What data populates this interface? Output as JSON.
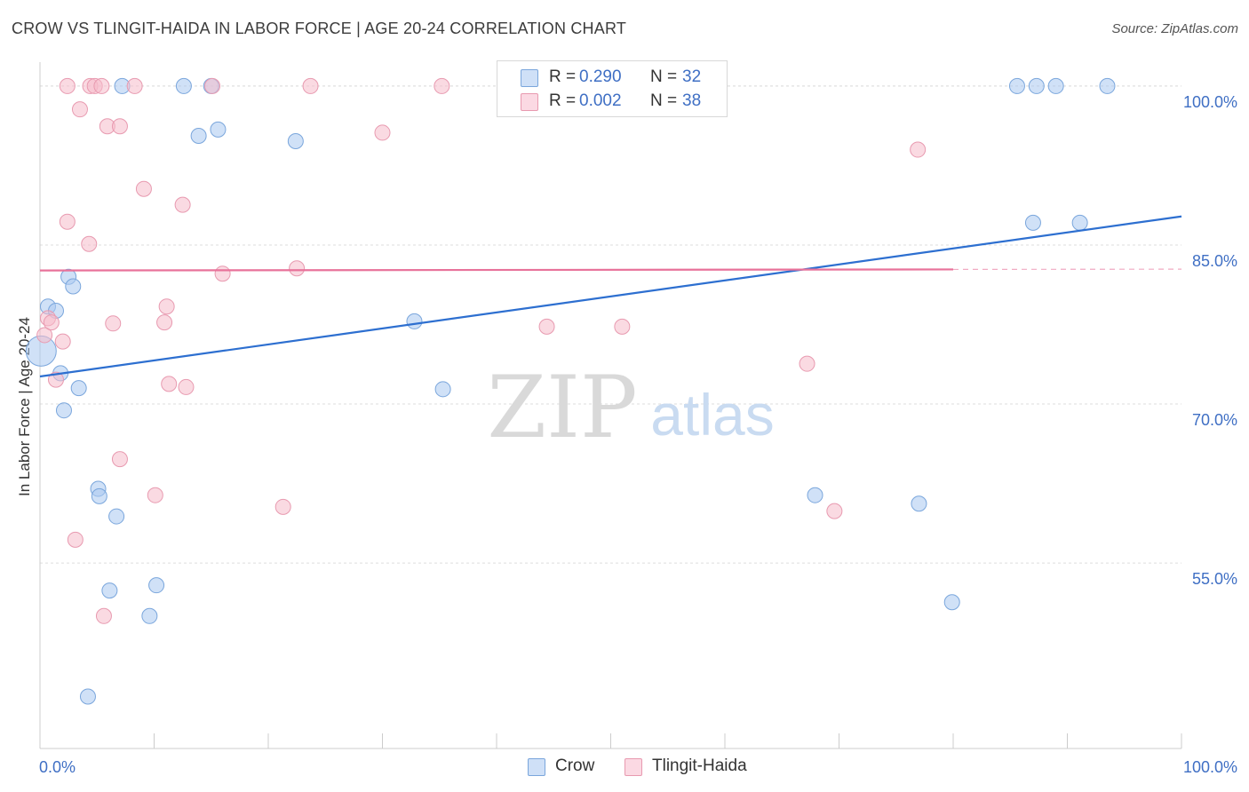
{
  "header": {
    "title": "CROW VS TLINGIT-HAIDA IN LABOR FORCE | AGE 20-24 CORRELATION CHART",
    "source": "Source: ZipAtlas.com"
  },
  "watermark": {
    "zip": "ZIP",
    "atlas": "atlas"
  },
  "legend": {
    "rows": [
      {
        "r_label": "R =",
        "r_value": "0.290",
        "n_label": "N =",
        "n_value": "32",
        "color": "#a9c8f0"
      },
      {
        "r_label": "R =",
        "r_value": "0.002",
        "n_label": "N =",
        "n_value": "38",
        "color": "#f6bccb"
      }
    ]
  },
  "chart_data": {
    "type": "scatter",
    "title": "CROW VS TLINGIT-HAIDA IN LABOR FORCE | AGE 20-24 CORRELATION CHART",
    "xlabel": "",
    "ylabel": "In Labor Force | Age 20-24",
    "xlim": [
      0,
      100
    ],
    "ylim": [
      37.5,
      101.5
    ],
    "x_tick_labels": [
      "0.0%",
      "100.0%"
    ],
    "y_ticks": [
      {
        "value": 55,
        "label": "55.0%"
      },
      {
        "value": 70,
        "label": "70.0%"
      },
      {
        "value": 85,
        "label": "85.0%"
      },
      {
        "value": 100,
        "label": "100.0%"
      }
    ],
    "grid": true,
    "legend_position": "bottom-center",
    "series": [
      {
        "name": "Crow",
        "color": "#a9c8f0",
        "edge": "#7aa6dc",
        "line_color": "#2d6fd0",
        "trend": {
          "x0": 0,
          "y0": 72.6,
          "x1": 100,
          "y1": 87.7
        },
        "points": [
          {
            "x": 0.1,
            "y": 75.0,
            "big": true
          },
          {
            "x": 0.7,
            "y": 79.2
          },
          {
            "x": 1.4,
            "y": 78.8
          },
          {
            "x": 1.8,
            "y": 72.9
          },
          {
            "x": 2.1,
            "y": 69.4
          },
          {
            "x": 2.5,
            "y": 82.0
          },
          {
            "x": 2.9,
            "y": 81.1
          },
          {
            "x": 3.4,
            "y": 71.5
          },
          {
            "x": 5.1,
            "y": 62.0
          },
          {
            "x": 5.2,
            "y": 61.3
          },
          {
            "x": 6.1,
            "y": 52.4
          },
          {
            "x": 6.7,
            "y": 59.4
          },
          {
            "x": 7.2,
            "y": 100.0
          },
          {
            "x": 9.6,
            "y": 50.0
          },
          {
            "x": 10.2,
            "y": 52.9
          },
          {
            "x": 12.6,
            "y": 100.0
          },
          {
            "x": 13.9,
            "y": 95.3
          },
          {
            "x": 15.0,
            "y": 100.0
          },
          {
            "x": 15.6,
            "y": 95.9
          },
          {
            "x": 22.4,
            "y": 94.8
          },
          {
            "x": 32.8,
            "y": 77.8
          },
          {
            "x": 35.3,
            "y": 71.4
          },
          {
            "x": 67.9,
            "y": 61.4
          },
          {
            "x": 77.0,
            "y": 60.6
          },
          {
            "x": 79.9,
            "y": 51.3
          },
          {
            "x": 85.6,
            "y": 100.0
          },
          {
            "x": 87.0,
            "y": 87.1
          },
          {
            "x": 87.3,
            "y": 100.0
          },
          {
            "x": 89.0,
            "y": 100.0
          },
          {
            "x": 91.1,
            "y": 87.1
          },
          {
            "x": 93.5,
            "y": 100.0
          },
          {
            "x": 4.2,
            "y": 42.4
          }
        ]
      },
      {
        "name": "Tlingit-Haida",
        "color": "#f6bccb",
        "edge": "#e89ab0",
        "line_color": "#e8729a",
        "trend": {
          "x0": 0,
          "y0": 82.6,
          "x1": 80,
          "y1": 82.7,
          "dashed_to": 100
        },
        "points": [
          {
            "x": 0.4,
            "y": 76.5
          },
          {
            "x": 0.7,
            "y": 78.1
          },
          {
            "x": 1.0,
            "y": 77.7
          },
          {
            "x": 1.4,
            "y": 72.3
          },
          {
            "x": 2.0,
            "y": 75.9
          },
          {
            "x": 2.4,
            "y": 87.2
          },
          {
            "x": 2.4,
            "y": 100.0
          },
          {
            "x": 3.1,
            "y": 57.2
          },
          {
            "x": 3.5,
            "y": 97.8
          },
          {
            "x": 4.3,
            "y": 85.1
          },
          {
            "x": 4.4,
            "y": 100.0
          },
          {
            "x": 4.8,
            "y": 100.0
          },
          {
            "x": 5.4,
            "y": 100.0
          },
          {
            "x": 5.6,
            "y": 50.0
          },
          {
            "x": 5.9,
            "y": 96.2
          },
          {
            "x": 6.4,
            "y": 77.6
          },
          {
            "x": 7.0,
            "y": 96.2
          },
          {
            "x": 7.0,
            "y": 64.8
          },
          {
            "x": 8.3,
            "y": 100.0
          },
          {
            "x": 9.1,
            "y": 90.3
          },
          {
            "x": 10.1,
            "y": 61.4
          },
          {
            "x": 10.9,
            "y": 77.7
          },
          {
            "x": 11.1,
            "y": 79.2
          },
          {
            "x": 11.3,
            "y": 71.9
          },
          {
            "x": 12.5,
            "y": 88.8
          },
          {
            "x": 12.8,
            "y": 71.6
          },
          {
            "x": 15.1,
            "y": 100.0
          },
          {
            "x": 16.0,
            "y": 82.3
          },
          {
            "x": 21.3,
            "y": 60.3
          },
          {
            "x": 22.5,
            "y": 82.8
          },
          {
            "x": 23.7,
            "y": 100.0
          },
          {
            "x": 30.0,
            "y": 95.6
          },
          {
            "x": 35.2,
            "y": 100.0
          },
          {
            "x": 44.4,
            "y": 77.3
          },
          {
            "x": 51.0,
            "y": 77.3
          },
          {
            "x": 67.2,
            "y": 73.8
          },
          {
            "x": 69.6,
            "y": 59.9
          },
          {
            "x": 76.9,
            "y": 94.0
          }
        ]
      }
    ]
  }
}
